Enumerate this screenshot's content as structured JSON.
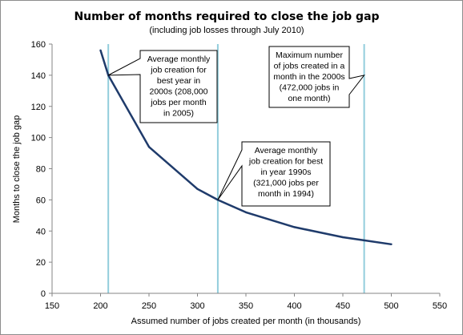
{
  "chart_data": {
    "type": "line",
    "title": "Number of months required to close the job gap",
    "subtitle": "(including job losses through July 2010)",
    "xlabel": "Assumed number of jobs created per month (in thousands)",
    "ylabel": "Months to close the job gap",
    "xlim": [
      150,
      550
    ],
    "ylim": [
      0,
      160
    ],
    "x_ticks": [
      "150",
      "200",
      "250",
      "300",
      "350",
      "400",
      "450",
      "500",
      "550"
    ],
    "y_ticks": [
      "0",
      "20",
      "40",
      "60",
      "80",
      "100",
      "120",
      "140",
      "160"
    ],
    "grid": false,
    "line_color": "#1f3b6b",
    "reference_line_color": "#92cddc",
    "series": [
      {
        "x": [
          200,
          208,
          250,
          300,
          321,
          350,
          400,
          450,
          472,
          500
        ],
        "y": [
          156,
          140,
          94,
          67,
          60,
          52,
          42.5,
          36,
          34,
          31.5
        ]
      }
    ],
    "reference_lines": [
      208,
      321,
      472
    ],
    "annotations": [
      {
        "lines": [
          "Average monthly",
          "job creation for",
          "best year in",
          "2000s (208,000",
          "jobs per month",
          "in 2005)"
        ],
        "x": 208,
        "y": 140
      },
      {
        "lines": [
          "Average monthly",
          "job creation for best",
          "in year 1990s",
          "(321,000 jobs per",
          "month in 1994)"
        ],
        "x": 321,
        "y": 60
      },
      {
        "lines": [
          "Maximum number",
          "of jobs created in a",
          "month in the 2000s",
          "(472,000 jobs in",
          "one month)"
        ],
        "x": 472,
        "y": 140
      }
    ]
  }
}
